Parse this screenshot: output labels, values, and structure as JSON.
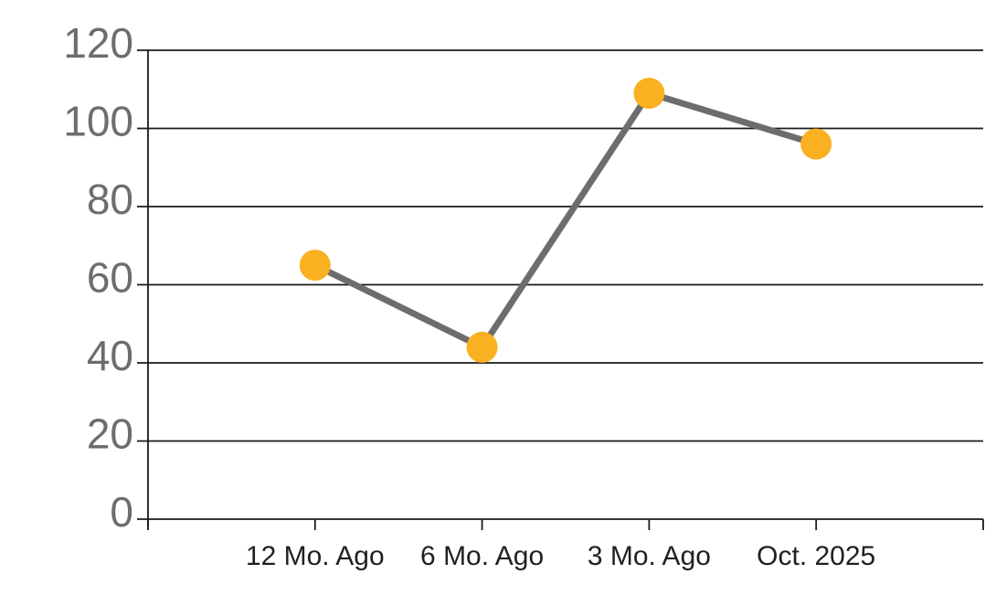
{
  "chart_data": {
    "type": "line",
    "title": "",
    "xlabel": "",
    "ylabel": "",
    "categories": [
      "12 Mo. Ago",
      "6 Mo. Ago",
      "3 Mo. Ago",
      "Oct. 2025"
    ],
    "series": [
      {
        "name": "values",
        "values": [
          65,
          44,
          109,
          96
        ]
      }
    ],
    "ylim": [
      0,
      120
    ],
    "ytick_step": 20,
    "ytick_labels": [
      "0",
      "20",
      "40",
      "60",
      "80",
      "100",
      "120"
    ],
    "grid": "horizontal",
    "legend": "none",
    "colors": {
      "marker": "#F9B021",
      "line": "#6D6D6D",
      "grid": "#1A1A1A",
      "axis": "#1A1A1A",
      "ytick_label": "#6D6D6D",
      "xtick_label": "#231F20",
      "background": "#FFFFFF"
    }
  }
}
